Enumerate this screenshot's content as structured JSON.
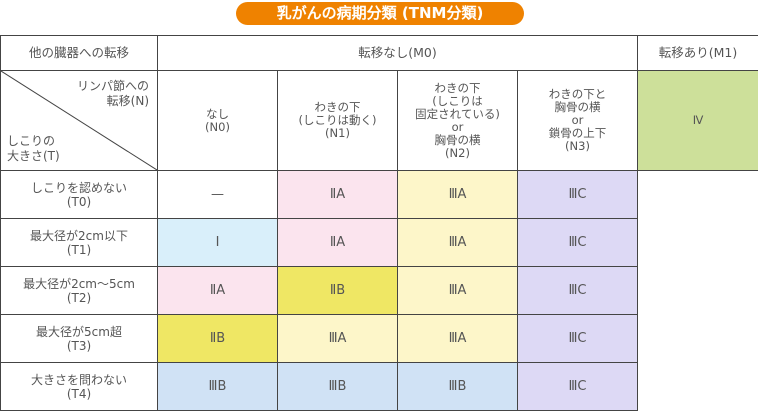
{
  "title": "乳がんの病期分類 (TNM分類)",
  "header": {
    "metastasis_label": "他の臓器への転移",
    "m0": "転移なし(M0)",
    "m1": "転移あり(M1)"
  },
  "corner": {
    "n_label": "リンパ節への\n転移(N)",
    "t_label": "しこりの\n大きさ(T)"
  },
  "n_columns": [
    {
      "label": "なし\n(N0)"
    },
    {
      "label": "わきの下\n(しこりは動く)\n(N1)"
    },
    {
      "label": "わきの下\n(しこりは\n固定されている)\nor\n胸骨の横\n(N2)"
    },
    {
      "label": "わきの下と\n胸骨の横\nor\n鎖骨の上下\n(N3)"
    }
  ],
  "m1_stage": "Ⅳ",
  "rows": [
    {
      "label": "しこりを認めない\n(T0)",
      "cells": [
        "—",
        "ⅡA",
        "ⅢA",
        "ⅢC"
      ]
    },
    {
      "label": "最大径が2cm以下\n(T1)",
      "cells": [
        "Ⅰ",
        "ⅡA",
        "ⅢA",
        "ⅢC"
      ]
    },
    {
      "label": "最大径が2cm〜5cm\n(T2)",
      "cells": [
        "ⅡA",
        "ⅡB",
        "ⅢA",
        "ⅢC"
      ]
    },
    {
      "label": "最大径が5cm超\n(T3)",
      "cells": [
        "ⅡB",
        "ⅢA",
        "ⅢA",
        "ⅢC"
      ]
    },
    {
      "label": "大きさを問わない\n(T4)",
      "cells": [
        "ⅢB",
        "ⅢB",
        "ⅢB",
        "ⅢC"
      ]
    }
  ],
  "colors": {
    "title_bg": "#ef8200",
    "none": "#ffffff",
    "I": "#d9effa",
    "IIA": "#fbe4ee",
    "IIB": "#efe764",
    "IIIA": "#fdf6c9",
    "IIIB": "#d0e2f5",
    "IIIC": "#ddd9f5",
    "IV": "#cde09a"
  }
}
